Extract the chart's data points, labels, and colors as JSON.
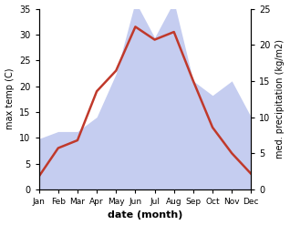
{
  "months": [
    "Jan",
    "Feb",
    "Mar",
    "Apr",
    "May",
    "Jun",
    "Jul",
    "Aug",
    "Sep",
    "Oct",
    "Nov",
    "Dec"
  ],
  "temperature": [
    2.5,
    8.0,
    9.5,
    19.0,
    23.0,
    31.5,
    29.0,
    30.5,
    21.0,
    12.0,
    7.0,
    3.0
  ],
  "precipitation": [
    7.0,
    8.0,
    8.0,
    10.0,
    16.0,
    26.0,
    21.0,
    26.0,
    15.0,
    13.0,
    15.0,
    10.0
  ],
  "temp_color": "#c0392b",
  "precip_color": "#c5cdf0",
  "ylim_temp": [
    0,
    35
  ],
  "ylim_precip": [
    0,
    25
  ],
  "temp_scale_max": 35,
  "precip_scale_max": 25,
  "ylabel_left": "max temp (C)",
  "ylabel_right": "med. precipitation (kg/m2)",
  "xlabel": "date (month)",
  "bg_color": "#ffffff",
  "temp_linewidth": 1.8,
  "left_ticks": [
    0,
    5,
    10,
    15,
    20,
    25,
    30,
    35
  ],
  "right_ticks": [
    0,
    5,
    10,
    15,
    20,
    25
  ]
}
